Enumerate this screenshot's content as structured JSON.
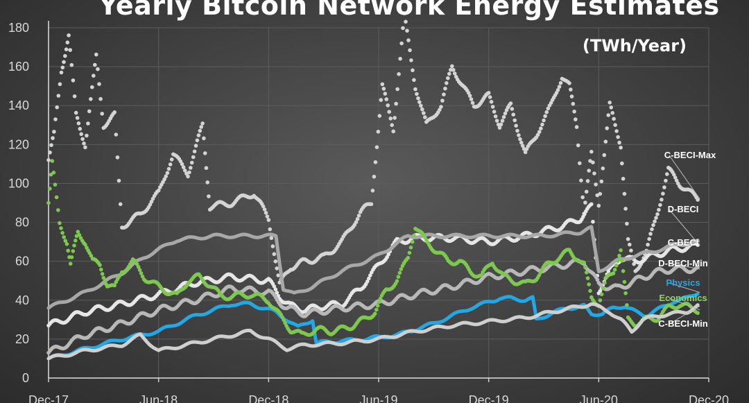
{
  "chart_data": {
    "type": "line",
    "title": "Yearly Bitcoin Network Energy Estimates",
    "units": "(TWh/Year)",
    "ylim": [
      0,
      180
    ],
    "yticks": [
      0,
      20,
      40,
      60,
      80,
      100,
      120,
      140,
      160,
      180
    ],
    "xticks": [
      "Dec-17",
      "Jun-18",
      "Dec-18",
      "Jun-19",
      "Dec-19",
      "Jun-20",
      "Dec-20"
    ],
    "grid": true,
    "legend": "labels at right end of lines",
    "series": [
      {
        "name": "C-BECI-Max",
        "color": "#d4d4d4",
        "style": "dots",
        "points": [
          [
            0,
            112
          ],
          [
            0.15,
            125
          ],
          [
            0.35,
            158
          ],
          [
            0.55,
            176
          ],
          [
            0.75,
            135
          ],
          [
            1.0,
            120
          ],
          [
            1.3,
            165
          ],
          [
            1.5,
            130
          ],
          [
            1.8,
            135
          ],
          [
            2.0,
            78
          ],
          [
            2.5,
            84
          ],
          [
            3.0,
            95
          ],
          [
            3.4,
            115
          ],
          [
            3.8,
            105
          ],
          [
            4.2,
            130
          ],
          [
            4.4,
            88
          ],
          [
            5.0,
            90
          ],
          [
            5.6,
            95
          ],
          [
            6.0,
            82
          ],
          [
            6.3,
            48
          ],
          [
            6.6,
            57
          ],
          [
            7.0,
            60
          ],
          [
            7.5,
            62
          ],
          [
            8.0,
            70
          ],
          [
            8.5,
            85
          ],
          [
            8.8,
            90
          ],
          [
            9.1,
            150
          ],
          [
            9.4,
            128
          ],
          [
            9.7,
            186
          ],
          [
            10.0,
            150
          ],
          [
            10.3,
            130
          ],
          [
            10.7,
            140
          ],
          [
            11.0,
            160
          ],
          [
            11.3,
            150
          ],
          [
            11.6,
            140
          ],
          [
            12.0,
            145
          ],
          [
            12.3,
            130
          ],
          [
            12.6,
            140
          ],
          [
            13.0,
            115
          ],
          [
            13.3,
            125
          ],
          [
            13.7,
            140
          ],
          [
            14.0,
            155
          ],
          [
            14.2,
            150
          ],
          [
            14.4,
            130
          ],
          [
            14.6,
            85
          ],
          [
            14.8,
            115
          ],
          [
            15.0,
            90
          ],
          [
            15.3,
            140
          ],
          [
            15.6,
            120
          ],
          [
            15.8,
            70
          ],
          [
            16.0,
            55
          ],
          [
            16.3,
            65
          ],
          [
            16.6,
            85
          ],
          [
            16.9,
            107
          ],
          [
            17.2,
            100
          ],
          [
            17.5,
            95
          ],
          [
            17.7,
            92
          ]
        ]
      },
      {
        "name": "D-BECI",
        "color": "#e6e6e6",
        "style": "dots",
        "points": [
          [
            0,
            27
          ],
          [
            1,
            34
          ],
          [
            2,
            38
          ],
          [
            3,
            43
          ],
          [
            4,
            49
          ],
          [
            5,
            52
          ],
          [
            6,
            50
          ],
          [
            6.3,
            42
          ],
          [
            6.6,
            37
          ],
          [
            7,
            35
          ],
          [
            7.5,
            37
          ],
          [
            8,
            38
          ],
          [
            8.5,
            46
          ],
          [
            9,
            58
          ],
          [
            9.5,
            70
          ],
          [
            10,
            72
          ],
          [
            11,
            72
          ],
          [
            12,
            70
          ],
          [
            13,
            73
          ],
          [
            14,
            78
          ],
          [
            14.5,
            82
          ],
          [
            14.8,
            88
          ],
          [
            15.0,
            45
          ],
          [
            15.3,
            55
          ],
          [
            15.6,
            62
          ],
          [
            16,
            60
          ],
          [
            16.5,
            63
          ],
          [
            17,
            66
          ],
          [
            17.7,
            68
          ]
        ]
      },
      {
        "name": "C-BECI",
        "color": "#a8a8a8",
        "style": "line",
        "points": [
          [
            0,
            36
          ],
          [
            1,
            44
          ],
          [
            2,
            54
          ],
          [
            2.6,
            62
          ],
          [
            3.5,
            71
          ],
          [
            4.5,
            73
          ],
          [
            5.5,
            73
          ],
          [
            6.2,
            73
          ],
          [
            6.4,
            46
          ],
          [
            6.7,
            43
          ],
          [
            7.2,
            47
          ],
          [
            8,
            55
          ],
          [
            9,
            63
          ],
          [
            9.8,
            73
          ],
          [
            10.5,
            73
          ],
          [
            12,
            73
          ],
          [
            13.5,
            73
          ],
          [
            14.5,
            75
          ],
          [
            14.8,
            77
          ],
          [
            15.0,
            55
          ],
          [
            15.5,
            60
          ],
          [
            16,
            63
          ],
          [
            16.5,
            65
          ],
          [
            17,
            68
          ],
          [
            17.7,
            70
          ]
        ]
      },
      {
        "name": "D-BECI-Min",
        "color": "#b8b8b8",
        "style": "dots",
        "points": [
          [
            0,
            13
          ],
          [
            1,
            22
          ],
          [
            2,
            28
          ],
          [
            3,
            35
          ],
          [
            4,
            40
          ],
          [
            5,
            46
          ],
          [
            6,
            44
          ],
          [
            6.5,
            36
          ],
          [
            7,
            33
          ],
          [
            8,
            36
          ],
          [
            9,
            38
          ],
          [
            10,
            43
          ],
          [
            11,
            47
          ],
          [
            12,
            52
          ],
          [
            13,
            55
          ],
          [
            14,
            58
          ],
          [
            14.6,
            60
          ],
          [
            15,
            48
          ],
          [
            15.5,
            46
          ],
          [
            16,
            50
          ],
          [
            16.5,
            54
          ],
          [
            17,
            56
          ],
          [
            17.7,
            56
          ]
        ]
      },
      {
        "name": "Physics",
        "color": "#23a8e6",
        "style": "line",
        "points": [
          [
            0,
            10
          ],
          [
            1,
            15
          ],
          [
            2,
            20
          ],
          [
            3,
            24
          ],
          [
            4,
            32
          ],
          [
            5,
            38
          ],
          [
            5.5,
            38
          ],
          [
            6.2,
            34
          ],
          [
            6.5,
            30
          ],
          [
            6.8,
            26
          ],
          [
            7.2,
            30
          ],
          [
            7.3,
            18
          ],
          [
            8,
            19
          ],
          [
            8.6,
            20
          ],
          [
            9,
            21
          ],
          [
            9.5,
            22
          ],
          [
            10,
            25
          ],
          [
            10.5,
            28
          ],
          [
            11,
            32
          ],
          [
            11.5,
            36
          ],
          [
            12,
            39
          ],
          [
            12.3,
            41
          ],
          [
            12.6,
            41
          ],
          [
            13,
            40
          ],
          [
            13.2,
            41
          ],
          [
            13.3,
            30
          ],
          [
            13.8,
            34
          ],
          [
            14.2,
            36
          ],
          [
            14.6,
            37
          ],
          [
            14.8,
            33
          ],
          [
            15.1,
            33
          ],
          [
            15.4,
            36
          ],
          [
            15.7,
            37
          ],
          [
            16,
            34
          ],
          [
            16.3,
            32
          ],
          [
            16.7,
            36
          ],
          [
            17,
            39
          ],
          [
            17.4,
            41
          ],
          [
            17.7,
            44
          ]
        ]
      },
      {
        "name": "Economics",
        "color": "#7ec850",
        "style": "dots",
        "points": [
          [
            0,
            90
          ],
          [
            0.1,
            110
          ],
          [
            0.3,
            80
          ],
          [
            0.5,
            70
          ],
          [
            0.6,
            58
          ],
          [
            0.8,
            75
          ],
          [
            1.0,
            70
          ],
          [
            1.2,
            60
          ],
          [
            1.4,
            58
          ],
          [
            1.6,
            48
          ],
          [
            1.8,
            46
          ],
          [
            2.0,
            55
          ],
          [
            2.3,
            60
          ],
          [
            2.6,
            52
          ],
          [
            2.9,
            48
          ],
          [
            3.2,
            45
          ],
          [
            3.5,
            42
          ],
          [
            3.8,
            50
          ],
          [
            4.1,
            52
          ],
          [
            4.4,
            48
          ],
          [
            4.7,
            42
          ],
          [
            5.0,
            42
          ],
          [
            5.5,
            43
          ],
          [
            6.0,
            40
          ],
          [
            6.3,
            32
          ],
          [
            6.6,
            25
          ],
          [
            6.9,
            22
          ],
          [
            7.3,
            25
          ],
          [
            7.7,
            24
          ],
          [
            8.0,
            25
          ],
          [
            8.3,
            27
          ],
          [
            8.6,
            30
          ],
          [
            8.9,
            34
          ],
          [
            9.2,
            45
          ],
          [
            9.5,
            50
          ],
          [
            9.8,
            62
          ],
          [
            10.0,
            78
          ],
          [
            10.3,
            70
          ],
          [
            10.6,
            65
          ],
          [
            10.9,
            60
          ],
          [
            11.2,
            60
          ],
          [
            11.5,
            55
          ],
          [
            11.8,
            52
          ],
          [
            12.1,
            60
          ],
          [
            12.4,
            52
          ],
          [
            12.7,
            50
          ],
          [
            13.0,
            48
          ],
          [
            13.3,
            52
          ],
          [
            13.6,
            58
          ],
          [
            13.9,
            62
          ],
          [
            14.2,
            65
          ],
          [
            14.4,
            62
          ],
          [
            14.6,
            58
          ],
          [
            14.8,
            42
          ],
          [
            15.0,
            38
          ],
          [
            15.2,
            50
          ],
          [
            15.4,
            55
          ],
          [
            15.6,
            66
          ],
          [
            15.8,
            30
          ],
          [
            16.0,
            28
          ],
          [
            16.3,
            30
          ],
          [
            16.6,
            31
          ],
          [
            16.9,
            36
          ],
          [
            17.2,
            38
          ],
          [
            17.5,
            36
          ],
          [
            17.7,
            35
          ]
        ]
      },
      {
        "name": "C-BECI-Min",
        "color": "#cfcfcf",
        "style": "line",
        "points": [
          [
            0,
            10
          ],
          [
            1,
            14
          ],
          [
            2,
            17
          ],
          [
            2.5,
            22
          ],
          [
            3,
            14
          ],
          [
            4,
            18
          ],
          [
            5,
            22
          ],
          [
            5.5,
            24
          ],
          [
            6,
            20
          ],
          [
            6.5,
            15
          ],
          [
            7,
            17
          ],
          [
            8,
            18
          ],
          [
            9,
            20
          ],
          [
            10,
            24
          ],
          [
            11,
            27
          ],
          [
            12,
            29
          ],
          [
            13,
            31
          ],
          [
            14,
            35
          ],
          [
            14.8,
            38
          ],
          [
            15.3,
            34
          ],
          [
            15.6,
            30
          ],
          [
            15.9,
            24
          ],
          [
            16.2,
            30
          ],
          [
            16.6,
            32
          ],
          [
            17,
            33
          ],
          [
            17.4,
            34
          ],
          [
            17.7,
            37
          ]
        ]
      }
    ]
  }
}
